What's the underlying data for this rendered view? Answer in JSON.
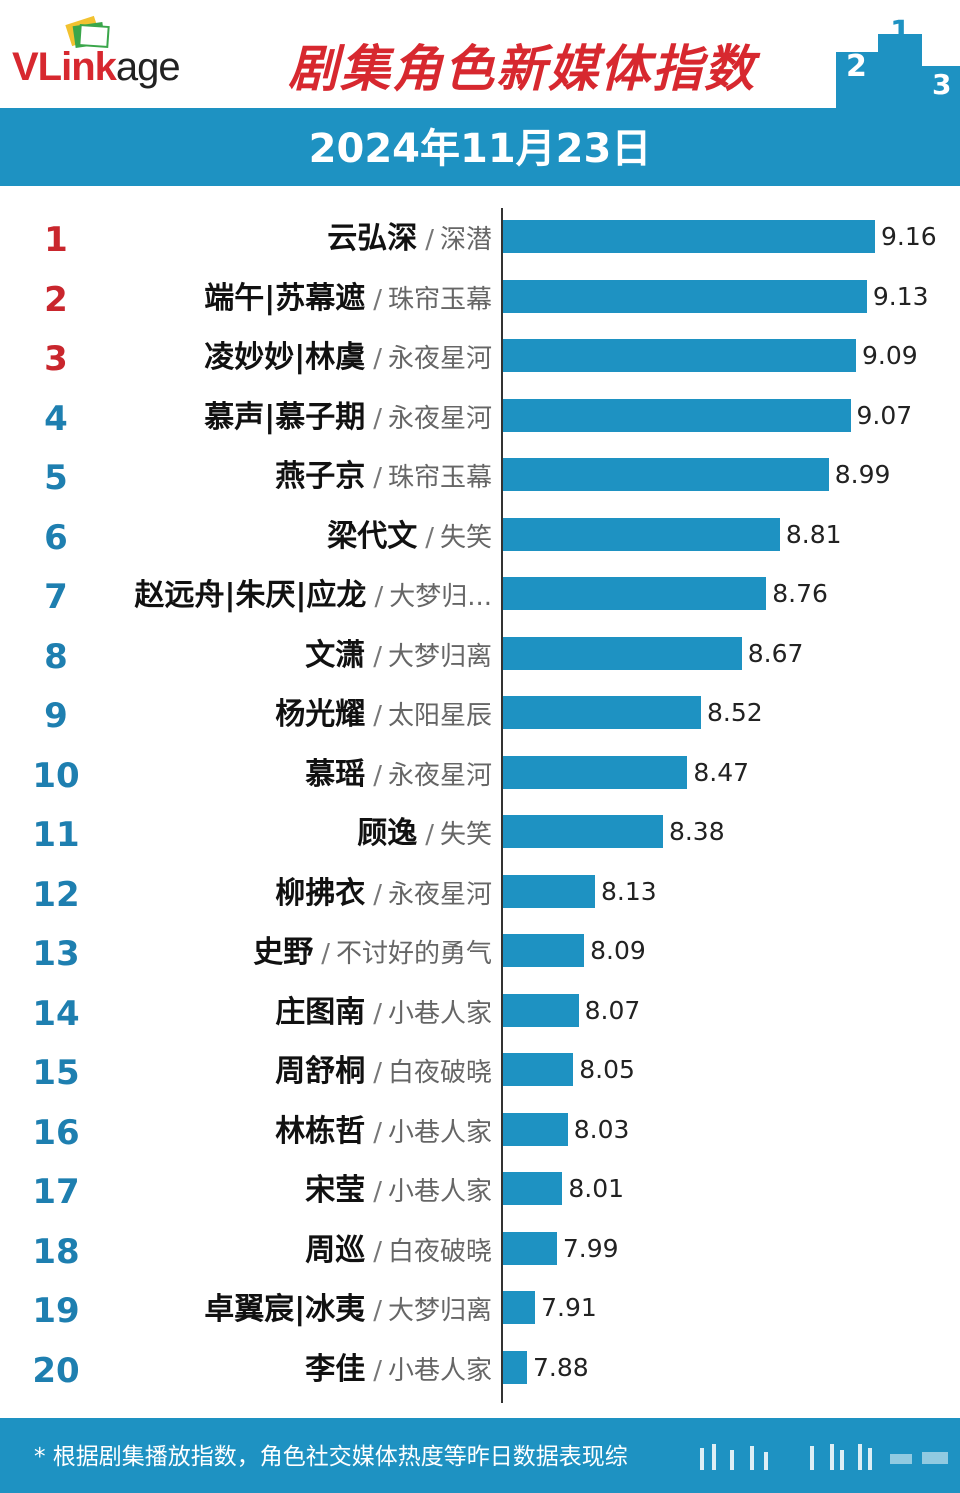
{
  "header": {
    "logo_text_main": "VLink",
    "logo_text_tail": "age",
    "title": "剧集角色新媒体指数"
  },
  "date_label": "2024年11月23日",
  "footer_note": "* 根据剧集播放指数，角色社交媒体热度等昨日数据表现综",
  "colors": {
    "accent_blue": "#1e92c2",
    "title_red": "#d7282f",
    "rank_red": "#c9262d",
    "rank_blue": "#1e7fb0"
  },
  "chart_data": {
    "type": "bar",
    "orientation": "horizontal",
    "xlim": [
      7.6,
      9.3
    ],
    "items": [
      {
        "rank": "1",
        "name": "云弘深",
        "drama": "深潜",
        "value": 9.16
      },
      {
        "rank": "2",
        "name": "端午|苏幕遮",
        "drama": "珠帘玉幕",
        "value": 9.13
      },
      {
        "rank": "3",
        "name": "凌妙妙|林虞",
        "drama": "永夜星河",
        "value": 9.09
      },
      {
        "rank": "4",
        "name": "慕声|慕子期",
        "drama": "永夜星河",
        "value": 9.07
      },
      {
        "rank": "5",
        "name": "燕子京",
        "drama": "珠帘玉幕",
        "value": 8.99
      },
      {
        "rank": "6",
        "name": "梁代文",
        "drama": "失笑",
        "value": 8.81
      },
      {
        "rank": "7",
        "name": "赵远舟|朱厌|应龙",
        "drama": "大梦归...",
        "value": 8.76
      },
      {
        "rank": "8",
        "name": "文潇",
        "drama": "大梦归离",
        "value": 8.67
      },
      {
        "rank": "9",
        "name": "杨光耀",
        "drama": "太阳星辰",
        "value": 8.52
      },
      {
        "rank": "10",
        "name": "慕瑶",
        "drama": "永夜星河",
        "value": 8.47
      },
      {
        "rank": "11",
        "name": "顾逸",
        "drama": "失笑",
        "value": 8.38
      },
      {
        "rank": "12",
        "name": "柳拂衣",
        "drama": "永夜星河",
        "value": 8.13
      },
      {
        "rank": "13",
        "name": "史野",
        "drama": "不讨好的勇气",
        "value": 8.09
      },
      {
        "rank": "14",
        "name": "庄图南",
        "drama": "小巷人家",
        "value": 8.07
      },
      {
        "rank": "15",
        "name": "周舒桐",
        "drama": "白夜破晓",
        "value": 8.05
      },
      {
        "rank": "16",
        "name": "林栋哲",
        "drama": "小巷人家",
        "value": 8.03
      },
      {
        "rank": "17",
        "name": "宋莹",
        "drama": "小巷人家",
        "value": 8.01
      },
      {
        "rank": "18",
        "name": "周巡",
        "drama": "白夜破晓",
        "value": 7.99
      },
      {
        "rank": "19",
        "name": "卓翼宸|冰夷",
        "drama": "大梦归离",
        "value": 7.91
      },
      {
        "rank": "20",
        "name": "李佳",
        "drama": "小巷人家",
        "value": 7.88
      }
    ]
  }
}
